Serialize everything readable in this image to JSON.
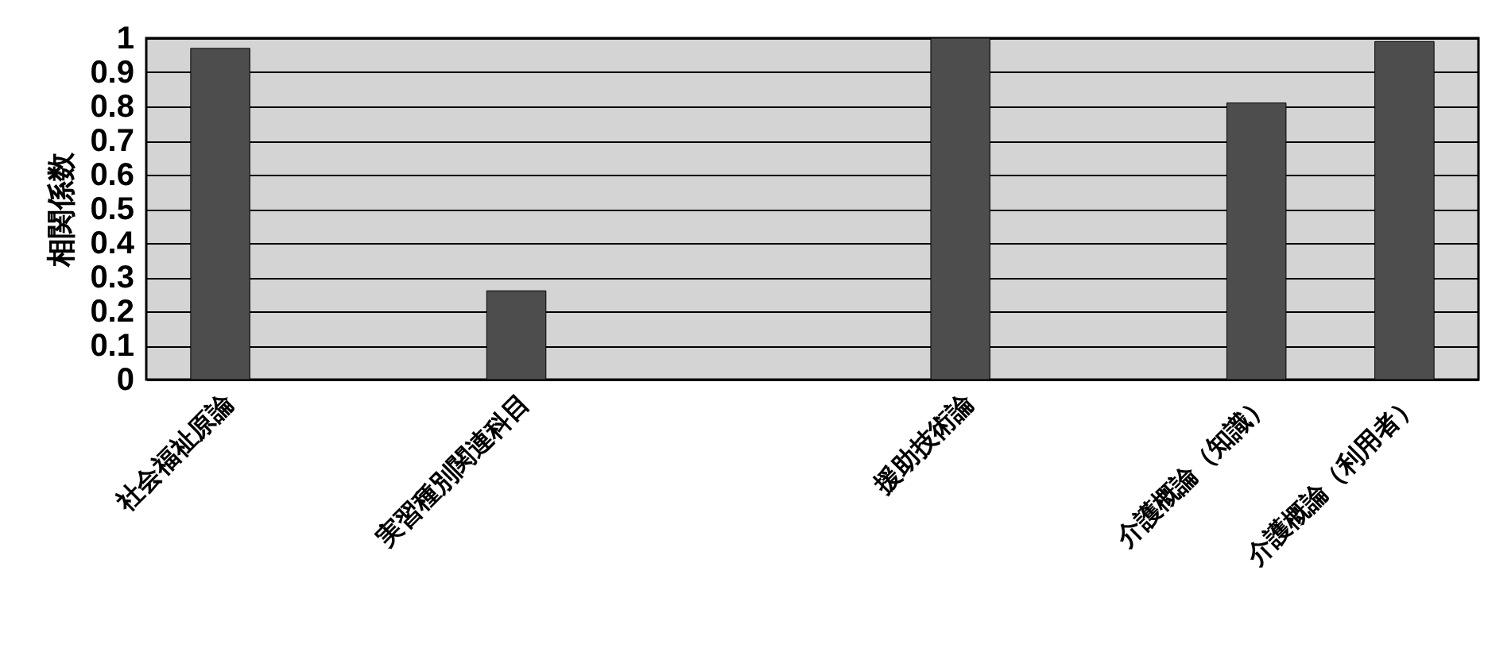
{
  "chart_data": {
    "type": "bar",
    "ylabel": "相関係数",
    "categories": [
      "社会福祉原論",
      null,
      "実習種別関連科目",
      null,
      null,
      "援助技術論",
      null,
      "介護概論（知識）",
      "介護概論（利用者）"
    ],
    "values": [
      0.97,
      null,
      0.26,
      null,
      null,
      1.0,
      null,
      0.81,
      0.99
    ],
    "color": "#4d4d4d",
    "ylim": [
      0,
      1
    ],
    "yticks": [
      0,
      0.1,
      0.2,
      0.3,
      0.4,
      0.5,
      0.6,
      0.7,
      0.8,
      0.9,
      1
    ],
    "grid": "y"
  }
}
